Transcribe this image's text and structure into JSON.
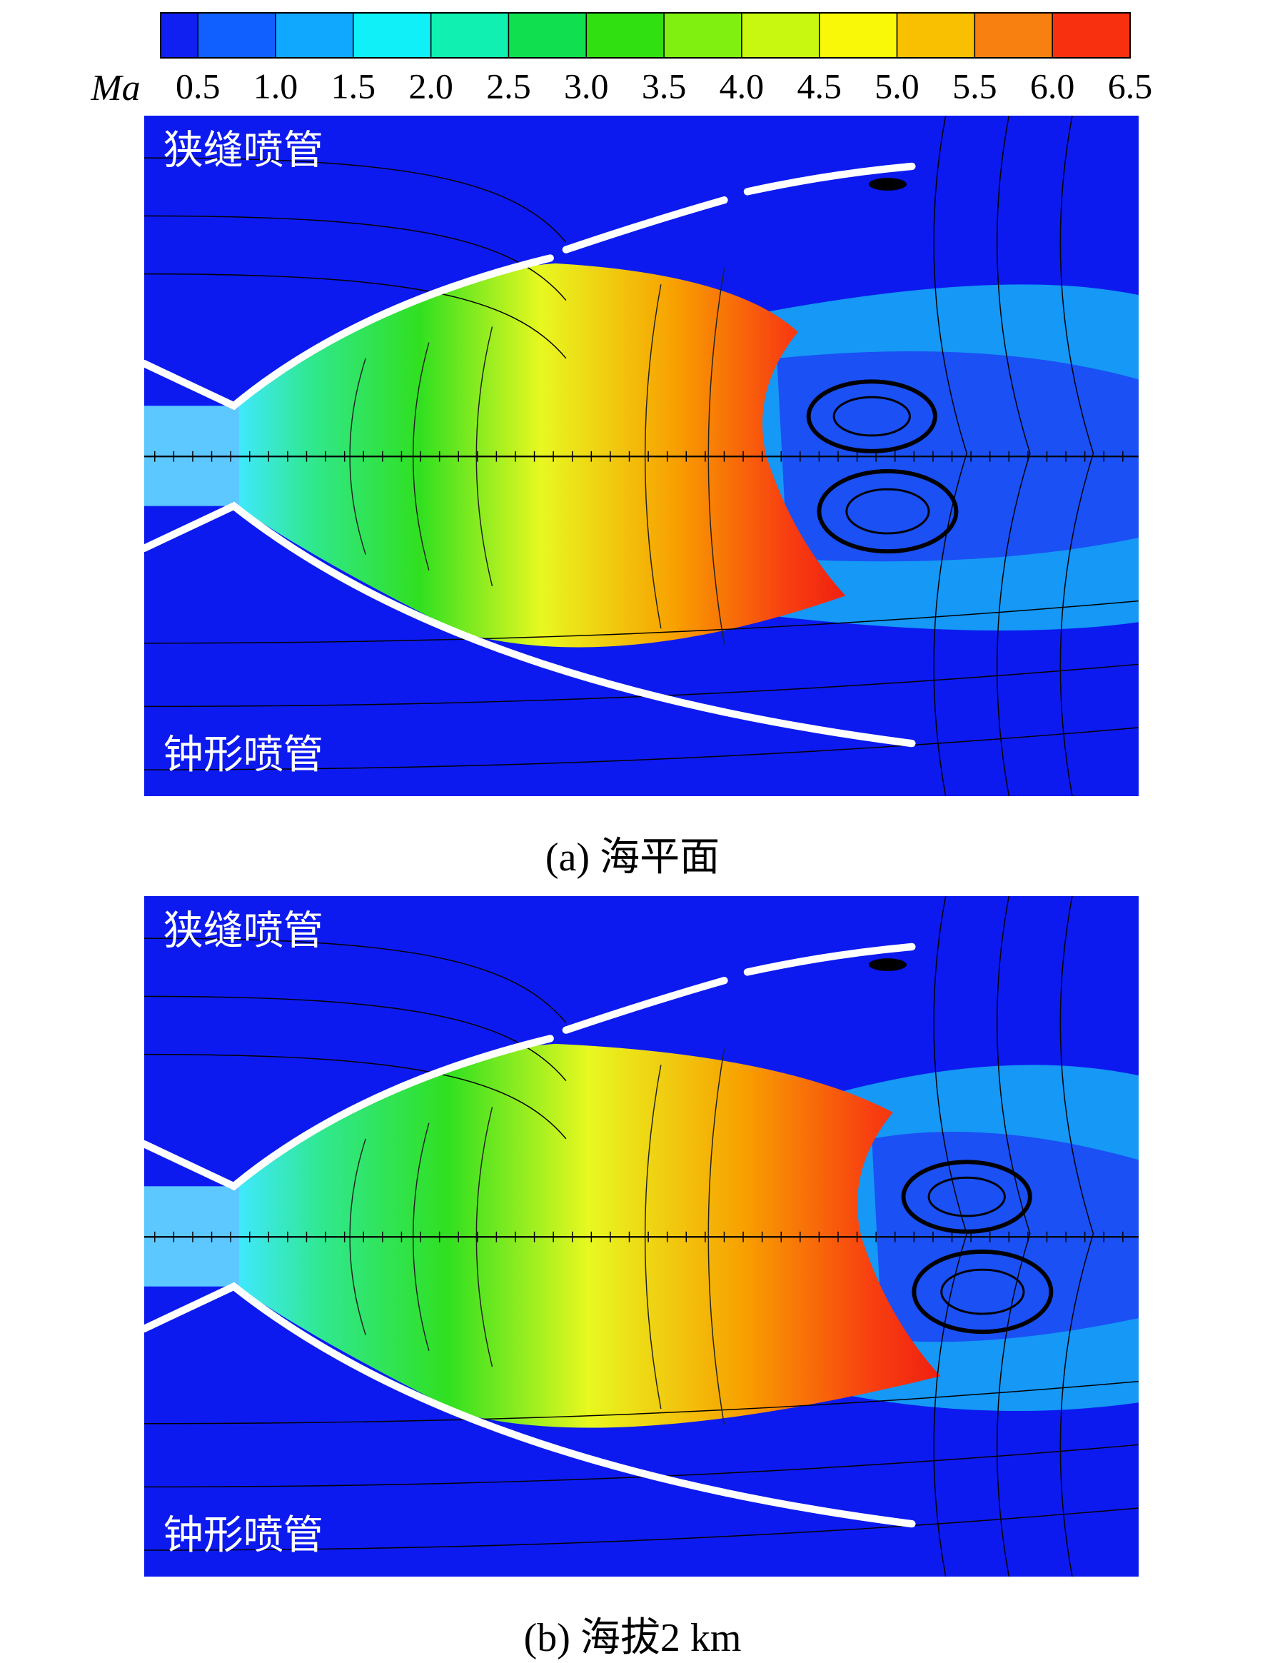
{
  "colorbar": {
    "label": "Ma",
    "lim": [
      0.26,
      6.5
    ],
    "ticks": [
      0.5,
      {
        "value": 1,
        "label": "1.0"
      },
      1.5,
      {
        "value": 2,
        "label": "2.0"
      },
      2.5,
      {
        "value": 3,
        "label": "3.0"
      },
      3.5,
      {
        "value": 4,
        "label": "4.0"
      },
      4.5,
      {
        "value": 5,
        "label": "5.0"
      },
      5.5,
      {
        "value": 6,
        "label": "6.0"
      },
      6.5
    ],
    "colors": [
      "#1020f0",
      "#1060ff",
      "#10a8ff",
      "#10f0f8",
      "#10f0b0",
      "#10e050",
      "#30e010",
      "#80f010",
      "#c8f810",
      "#f8f808",
      "#f8c000",
      "#f88010",
      "#f83010"
    ]
  },
  "panels": [
    {
      "top_label": "狭缝喷管",
      "bottom_label": "钟形喷管",
      "caption": "(a) 海平面"
    },
    {
      "top_label": "狭缝喷管",
      "bottom_label": "钟形喷管",
      "caption": "(b) 海拔2 km"
    }
  ]
}
